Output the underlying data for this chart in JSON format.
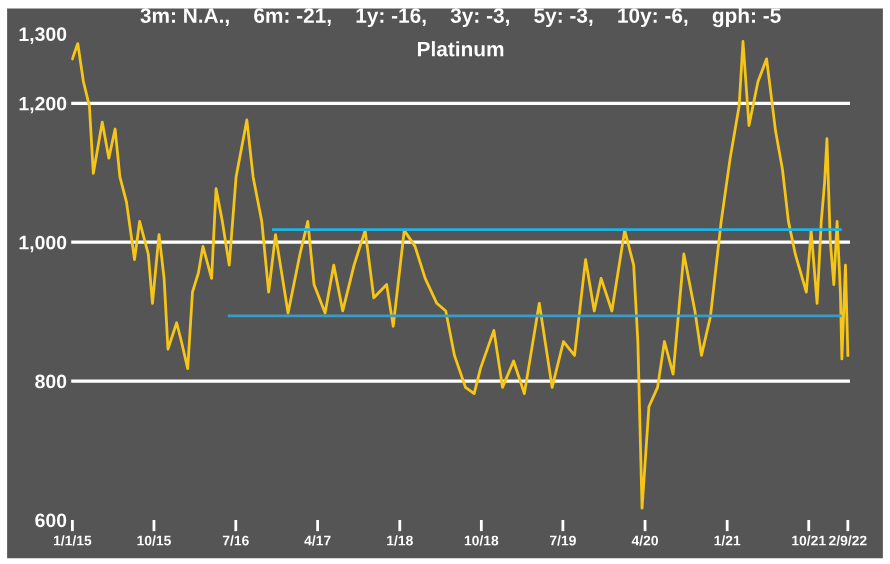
{
  "chart_data": {
    "type": "line",
    "title": "3m: N.A.,    6m: -21,    1y: -16,    3y: -3,    5y: -3,    10y: -6,    gph: -5",
    "subtitle": "Platinum",
    "series": [
      {
        "color": "#f5c518",
        "x": [
          "2015-01-01",
          "2015-01-19",
          "2015-02-07",
          "2015-02-27",
          "2015-03-12",
          "2015-04-11",
          "2015-05-03",
          "2015-05-24",
          "2015-06-09",
          "2015-07-01",
          "2015-07-28",
          "2015-08-14",
          "2015-09-12",
          "2015-09-26",
          "2015-10-18",
          "2015-11-04",
          "2015-11-17",
          "2015-12-16",
          "2016-01-01",
          "2016-01-22",
          "2016-02-07",
          "2016-02-27",
          "2016-03-13",
          "2016-04-11",
          "2016-04-26",
          "2016-05-17",
          "2016-06-09",
          "2016-07-02",
          "2016-08-07",
          "2016-08-28",
          "2016-09-26",
          "2016-10-19",
          "2016-11-11",
          "2016-12-23",
          "2017-02-01",
          "2017-02-27",
          "2017-03-20",
          "2017-04-26",
          "2017-05-25",
          "2017-06-24",
          "2017-08-01",
          "2017-09-07",
          "2017-10-06",
          "2017-11-18",
          "2017-12-10",
          "2018-01-16",
          "2018-02-21",
          "2018-03-27",
          "2018-05-05",
          "2018-06-04",
          "2018-07-03",
          "2018-08-09",
          "2018-09-07",
          "2018-09-28",
          "2018-11-12",
          "2018-12-11",
          "2019-01-17",
          "2019-02-22",
          "2019-04-13",
          "2019-05-26",
          "2019-07-03",
          "2019-08-09",
          "2019-09-15",
          "2019-10-14",
          "2019-11-06",
          "2019-12-12",
          "2020-01-24",
          "2020-02-23",
          "2020-03-08",
          "2020-03-22",
          "2020-04-14",
          "2020-05-13",
          "2020-06-05",
          "2020-07-04",
          "2020-08-09",
          "2020-09-15",
          "2020-10-07",
          "2020-11-06",
          "2020-12-12",
          "2021-01-11",
          "2021-02-10",
          "2021-02-23",
          "2021-03-15",
          "2021-04-14",
          "2021-05-13",
          "2021-06-12",
          "2021-07-05",
          "2021-07-25",
          "2021-08-17",
          "2021-09-23",
          "2021-10-09",
          "2021-10-29",
          "2021-11-12",
          "2021-11-23",
          "2021-12-01",
          "2021-12-12",
          "2021-12-24",
          "2022-01-04",
          "2022-01-15",
          "2022-01-20",
          "2022-02-01",
          "2022-02-09"
        ],
        "values": [
          1264,
          1286,
          1231,
          1196,
          1099,
          1173,
          1121,
          1163,
          1094,
          1058,
          975,
          1030,
          983,
          912,
          1011,
          948,
          846,
          884,
          857,
          818,
          928,
          956,
          994,
          948,
          1077,
          1030,
          967,
          1094,
          1176,
          1094,
          1030,
          928,
          1011,
          898,
          983,
          1030,
          939,
          898,
          967,
          901,
          967,
          1017,
          920,
          939,
          879,
          1017,
          994,
          948,
          912,
          901,
          837,
          791,
          782,
          818,
          873,
          791,
          829,
          782,
          912,
          791,
          857,
          837,
          975,
          901,
          948,
          901,
          1017,
          967,
          857,
          617,
          763,
          791,
          857,
          810,
          983,
          901,
          837,
          893,
          1030,
          1121,
          1196,
          1289,
          1168,
          1231,
          1264,
          1160,
          1105,
          1030,
          983,
          928,
          1017,
          912,
          1030,
          1085,
          1149,
          1003,
          939,
          1030,
          928,
          832,
          967,
          837
        ]
      },
      {
        "color": "#1ab4e6",
        "x": [
          "2016-11-04",
          "2022-01-15"
        ],
        "values": [
          1018,
          1018
        ]
      },
      {
        "color": "#3a9cc4",
        "x": [
          "2016-06-09",
          "2022-01-15"
        ],
        "values": [
          894,
          894
        ]
      }
    ],
    "xlim": [
      "2014-12-28",
      "2022-02-16"
    ],
    "xticks": [
      {
        "value": "2015-01-01",
        "label": "1/1/15"
      },
      {
        "value": "2015-10-01",
        "label": "10/15"
      },
      {
        "value": "2016-07-01",
        "label": "7/16"
      },
      {
        "value": "2017-04-01",
        "label": "4/17"
      },
      {
        "value": "2018-01-01",
        "label": "1/18"
      },
      {
        "value": "2018-10-01",
        "label": "10/18"
      },
      {
        "value": "2019-07-01",
        "label": "7/19"
      },
      {
        "value": "2020-04-01",
        "label": "4/20"
      },
      {
        "value": "2021-01-01",
        "label": "1/21"
      },
      {
        "value": "2021-10-01",
        "label": "10/21"
      },
      {
        "value": "2022-02-09",
        "label": "2/9/22"
      }
    ],
    "ylim": [
      600,
      1300
    ],
    "yticks": [
      600,
      800,
      {
        "value": 1000,
        "label": "1,000"
      },
      {
        "value": 1200,
        "label": "1,200"
      },
      {
        "value": 1300,
        "label": "1,300"
      }
    ],
    "grid": "y",
    "line_style": "solid",
    "marker": "none"
  }
}
